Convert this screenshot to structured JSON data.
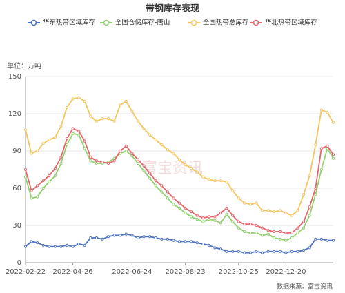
{
  "chart_data": {
    "type": "line",
    "title": "带钢库存表现",
    "y_unit_label": "单位：万吨",
    "source": "数据来源：富宝资讯",
    "watermark": "富宝资讯",
    "categories": [
      "2022-02-22",
      null,
      null,
      null,
      null,
      null,
      null,
      null,
      "2022-04-26",
      null,
      null,
      null,
      null,
      null,
      null,
      null,
      null,
      null,
      "2022-06-24",
      null,
      null,
      null,
      null,
      null,
      null,
      null,
      null,
      "2022-08-23",
      null,
      null,
      null,
      null,
      null,
      null,
      null,
      null,
      "2022-10-25",
      null,
      null,
      null,
      null,
      null,
      null,
      null,
      "2022-12-20",
      null,
      null,
      null,
      null,
      null,
      null,
      null,
      null
    ],
    "series": [
      {
        "name": "华东热带区域库存",
        "color": "#4a6fc4",
        "values": [
          13,
          17,
          16,
          14,
          13,
          13,
          13,
          14,
          13,
          15,
          14,
          20,
          20,
          19,
          21,
          22,
          22,
          23,
          22,
          20,
          21,
          21,
          20,
          19,
          19,
          18,
          17,
          17,
          17,
          16,
          15,
          14,
          12,
          11,
          9,
          9,
          9,
          8,
          8,
          9,
          8,
          9,
          9,
          9,
          8,
          9,
          9,
          10,
          12,
          19,
          19,
          18,
          18
        ]
      },
      {
        "name": "全国仓储库存-唐山",
        "color": "#8fd16c",
        "values": [
          69,
          52,
          53,
          60,
          65,
          70,
          80,
          95,
          104,
          103,
          92,
          82,
          80,
          80,
          81,
          84,
          88,
          90,
          86,
          80,
          74,
          68,
          62,
          57,
          52,
          47,
          44,
          40,
          37,
          35,
          33,
          35,
          34,
          32,
          39,
          33,
          28,
          25,
          24,
          24,
          22,
          23,
          20,
          19,
          18,
          20,
          24,
          28,
          38,
          55,
          75,
          92,
          84
        ]
      },
      {
        "name": "全国热带总库存",
        "color": "#f7c45a",
        "values": [
          107,
          88,
          90,
          96,
          99,
          101,
          110,
          125,
          132,
          133,
          130,
          118,
          114,
          116,
          116,
          114,
          127,
          130,
          122,
          114,
          108,
          103,
          99,
          95,
          91,
          88,
          83,
          79,
          76,
          73,
          69,
          67,
          66,
          66,
          65,
          58,
          52,
          48,
          47,
          48,
          42,
          42,
          41,
          42,
          40,
          38,
          42,
          55,
          70,
          95,
          123,
          121,
          113
        ]
      },
      {
        "name": "华北热带区域库存",
        "color": "#e8636b",
        "values": [
          75,
          58,
          62,
          66,
          70,
          76,
          85,
          100,
          108,
          106,
          98,
          85,
          82,
          81,
          80,
          82,
          90,
          94,
          88,
          83,
          78,
          72,
          66,
          62,
          57,
          52,
          48,
          44,
          41,
          38,
          36,
          37,
          37,
          40,
          44,
          38,
          33,
          31,
          31,
          30,
          28,
          26,
          25,
          25,
          24,
          24,
          28,
          33,
          45,
          60,
          92,
          94,
          87
        ]
      }
    ],
    "ylim": [
      0,
      150
    ],
    "yticks": [
      0,
      30,
      60,
      90,
      120,
      150
    ],
    "grid": true
  }
}
